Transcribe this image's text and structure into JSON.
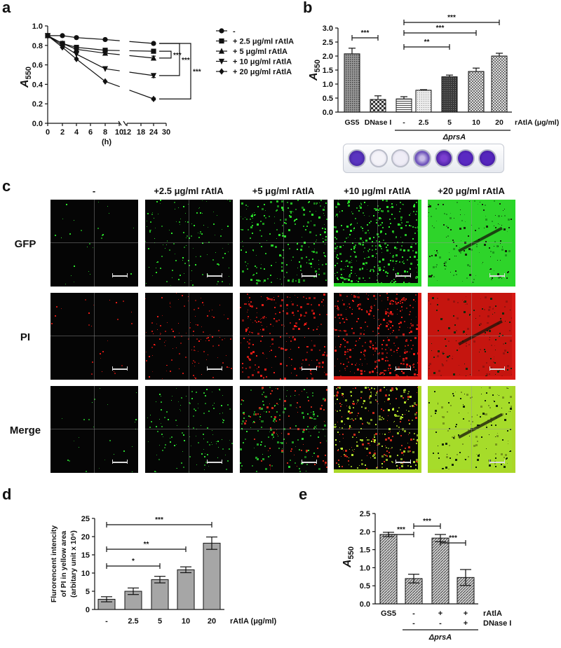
{
  "panel_labels": {
    "a": "a",
    "b": "b",
    "c": "c",
    "d": "d",
    "e": "e"
  },
  "colors": {
    "gfp": "#2fd82f",
    "pi": "#e01d14",
    "merge": "#b8e62a",
    "crystal_violet": "#4a2aa8"
  },
  "chart_data": [
    {
      "panel": "a",
      "type": "line",
      "xlabel": "(h)",
      "ylabel": "A550",
      "x_ticks": [
        "0",
        "2",
        "4",
        "6",
        "8",
        "10",
        "12",
        "18",
        "24",
        "30"
      ],
      "y_ticks": [
        "0.0",
        "0.2",
        "0.4",
        "0.6",
        "0.8",
        "1.0"
      ],
      "ylim": [
        0,
        1.0
      ],
      "x": [
        0,
        2,
        4,
        8,
        24
      ],
      "series": [
        {
          "name": "-",
          "marker": "circle",
          "values": [
            0.9,
            0.9,
            0.88,
            0.86,
            0.82
          ],
          "err": [
            0,
            0,
            0,
            0,
            0.01
          ]
        },
        {
          "name": "+ 2.5 μg/ml rAtlA",
          "marker": "square",
          "values": [
            0.9,
            0.82,
            0.78,
            0.75,
            0.74
          ],
          "err": [
            0,
            0,
            0,
            0,
            0.02
          ]
        },
        {
          "name": "+ 5 μg/ml rAtlA",
          "marker": "triangle-up",
          "values": [
            0.9,
            0.82,
            0.76,
            0.72,
            0.67
          ],
          "err": [
            0,
            0,
            0,
            0,
            0.02
          ]
        },
        {
          "name": "+ 10 μg/ml rAtlA",
          "marker": "triangle-down",
          "values": [
            0.9,
            0.8,
            0.71,
            0.56,
            0.49
          ],
          "err": [
            0,
            0,
            0,
            0,
            0.02
          ]
        },
        {
          "name": "+ 20 μg/ml rAtlA",
          "marker": "diamond",
          "values": [
            0.9,
            0.78,
            0.66,
            0.43,
            0.25
          ],
          "err": [
            0,
            0,
            0,
            0,
            0.01
          ]
        }
      ],
      "significance": [
        "***",
        "***",
        "***"
      ]
    },
    {
      "panel": "b",
      "type": "bar",
      "ylabel": "A550",
      "y_ticks": [
        "0.0",
        "0.5",
        "1.0",
        "1.5",
        "2.0",
        "2.5",
        "3.0"
      ],
      "ylim": [
        0,
        3.0
      ],
      "categories": [
        "GS5",
        "DNase I",
        "-",
        "2.5",
        "5",
        "10",
        "20"
      ],
      "values": [
        2.08,
        0.45,
        0.47,
        0.78,
        1.26,
        1.45,
        2.0
      ],
      "errors": [
        0.2,
        0.13,
        0.08,
        0.02,
        0.06,
        0.12,
        0.1
      ],
      "patterns": [
        "dots",
        "checker",
        "hlines",
        "lightdots",
        "dark",
        "crosshatch",
        "crosshatch"
      ],
      "x_unit_label": "rAtlA (μg/ml)",
      "group_label": "ΔprsA",
      "significance": [
        "***",
        "***",
        "***",
        "**"
      ]
    },
    {
      "panel": "d",
      "type": "bar",
      "ylabel_lines": [
        "Flurorencent intencity",
        "of PI in yellow area",
        "(arbitary unit x 10⁶)"
      ],
      "y_ticks": [
        "0",
        "5",
        "10",
        "15",
        "20",
        "25"
      ],
      "ylim": [
        0,
        25
      ],
      "categories": [
        "-",
        "2.5",
        "5",
        "10",
        "20"
      ],
      "values": [
        2.8,
        5.0,
        8.2,
        10.9,
        18.2
      ],
      "errors": [
        0.7,
        0.9,
        0.9,
        0.8,
        1.7
      ],
      "x_unit_label": "rAtlA (μg/ml)",
      "significance": [
        "***",
        "**",
        "*"
      ]
    },
    {
      "panel": "e",
      "type": "bar",
      "ylabel": "A550",
      "y_ticks": [
        "0.0",
        "0.5",
        "1.0",
        "1.5",
        "2.0",
        "2.5"
      ],
      "ylim": [
        0,
        2.5
      ],
      "categories": [
        "GS5",
        "",
        "",
        ""
      ],
      "values": [
        1.92,
        0.7,
        1.82,
        0.73
      ],
      "errors": [
        0.06,
        0.12,
        0.1,
        0.22
      ],
      "row_ratla": [
        "",
        "-",
        "+",
        "+"
      ],
      "row_dnase": [
        "",
        "-",
        "-",
        "+"
      ],
      "row_ratla_label": "rAtlA",
      "row_dnase_label": "DNase I",
      "group_label": "ΔprsA",
      "significance": [
        "***",
        "***",
        "***"
      ]
    }
  ],
  "microscopy": {
    "columns": [
      "-",
      "+2.5 μg/ml rAtlA",
      "+5 μg/ml rAtlA",
      "+10 μg/ml rAtlA",
      "+20 μg/ml rAtlA"
    ],
    "rows": [
      "GFP",
      "PI",
      "Merge"
    ]
  }
}
